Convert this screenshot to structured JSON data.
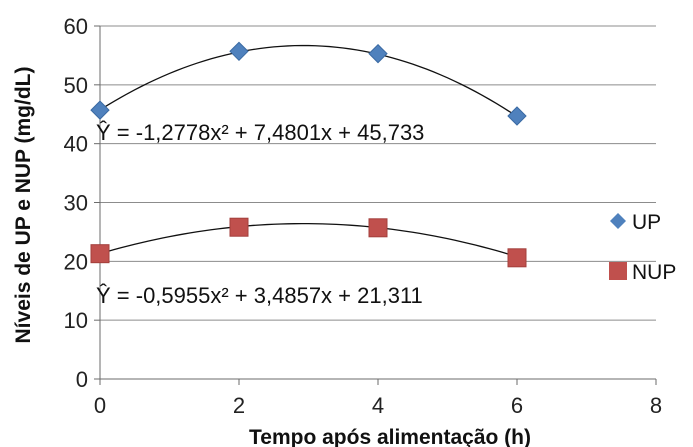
{
  "chart_data": {
    "type": "scatter",
    "xlabel": "Tempo após alimentação (h)",
    "ylabel": "Níveis de UP e NUP (mg/dL)",
    "xlim": [
      0,
      8
    ],
    "ylim": [
      0,
      60
    ],
    "xticks": [
      "0",
      "2",
      "4",
      "6",
      "8"
    ],
    "yticks": [
      "0",
      "10",
      "20",
      "30",
      "40",
      "50",
      "60"
    ],
    "grid": "horizontal",
    "legend_position": "right",
    "series": [
      {
        "name": "UP",
        "color": "#4F81BD",
        "marker": "diamond",
        "x": [
          0,
          2,
          4,
          6
        ],
        "y": [
          45.7,
          55.7,
          55.3,
          44.7
        ],
        "trendline": {
          "a": -1.2778,
          "b": 7.4801,
          "c": 45.733
        },
        "equation": "Ŷ = -1,2778x² + 7,4801x + 45,733"
      },
      {
        "name": "NUP",
        "color": "#C0504D",
        "marker": "square",
        "x": [
          0,
          2,
          4,
          6
        ],
        "y": [
          21.3,
          25.8,
          25.7,
          20.6
        ],
        "trendline": {
          "a": -0.5955,
          "b": 3.4857,
          "c": 21.311
        },
        "equation": "Ŷ = -0,5955x² + 3,4857x + 21,311"
      }
    ]
  }
}
